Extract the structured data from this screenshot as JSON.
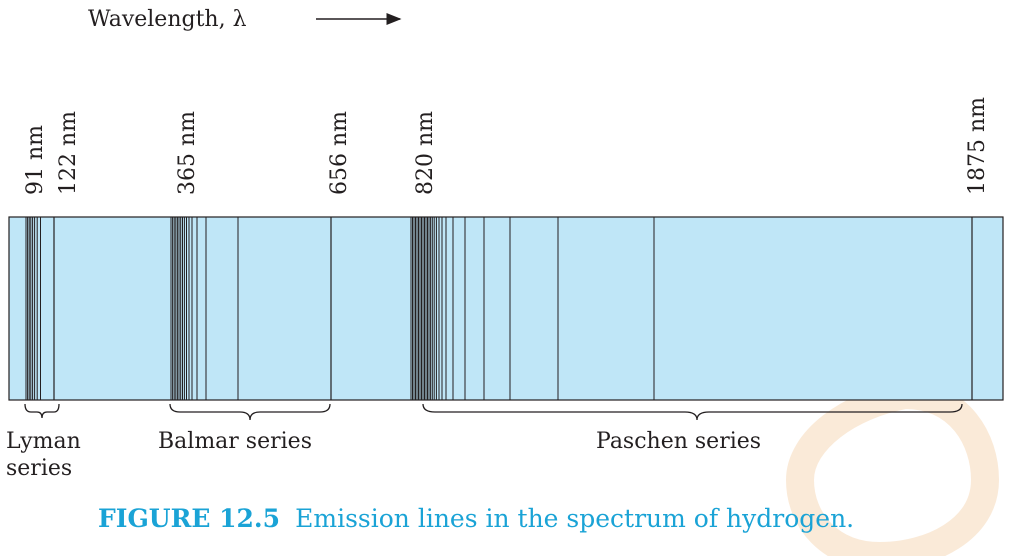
{
  "axis_heading": {
    "label": "Wavelength, λ"
  },
  "wavelength_labels": [
    {
      "text": "91 nm"
    },
    {
      "text": "122 nm"
    },
    {
      "text": "365 nm"
    },
    {
      "text": "656 nm"
    },
    {
      "text": "820 nm"
    },
    {
      "text": "1875 nm"
    }
  ],
  "series": [
    {
      "name_lines": [
        "Lyman",
        "series"
      ]
    },
    {
      "name_lines": [
        "Balmar series"
      ]
    },
    {
      "name_lines": [
        "Paschen series"
      ]
    }
  ],
  "caption": {
    "label": "FIGURE 12.5",
    "text": "Emission lines in the spectrum of hydrogen."
  },
  "colors": {
    "band_fill": "#bfe6f7",
    "line": "#231f20",
    "caption": "#1aa3d6",
    "watermark": "#f6d9b8"
  }
}
